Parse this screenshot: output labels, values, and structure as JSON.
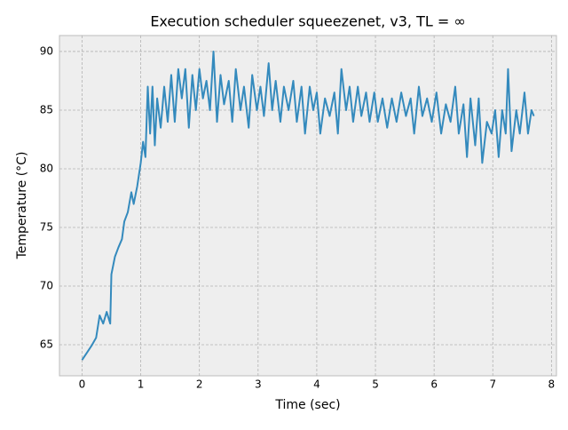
{
  "chart_data": {
    "type": "line",
    "title": "Execution scheduler squeezenet, v3, TL = ∞",
    "x_label": "Time (sec)",
    "y_label": "Temperature (°C)",
    "x": [
      0.0,
      0.08,
      0.16,
      0.24,
      0.3,
      0.36,
      0.42,
      0.48,
      0.5,
      0.56,
      0.62,
      0.68,
      0.72,
      0.78,
      0.84,
      0.88,
      0.94,
      1.0,
      1.04,
      1.08,
      1.12,
      1.16,
      1.2,
      1.24,
      1.28,
      1.34,
      1.4,
      1.46,
      1.52,
      1.58,
      1.64,
      1.7,
      1.76,
      1.82,
      1.88,
      1.94,
      2.0,
      2.06,
      2.12,
      2.18,
      2.24,
      2.3,
      2.36,
      2.42,
      2.5,
      2.56,
      2.62,
      2.7,
      2.76,
      2.84,
      2.9,
      2.98,
      3.04,
      3.1,
      3.18,
      3.24,
      3.3,
      3.38,
      3.44,
      3.52,
      3.6,
      3.66,
      3.74,
      3.8,
      3.88,
      3.94,
      4.0,
      4.06,
      4.14,
      4.22,
      4.3,
      4.36,
      4.42,
      4.5,
      4.56,
      4.62,
      4.7,
      4.76,
      4.84,
      4.9,
      4.98,
      5.04,
      5.12,
      5.2,
      5.28,
      5.36,
      5.44,
      5.52,
      5.6,
      5.66,
      5.74,
      5.8,
      5.88,
      5.96,
      6.04,
      6.12,
      6.2,
      6.28,
      6.36,
      6.42,
      6.5,
      6.56,
      6.62,
      6.7,
      6.76,
      6.82,
      6.9,
      6.98,
      7.04,
      7.1,
      7.16,
      7.22,
      7.26,
      7.32,
      7.4,
      7.46,
      7.54,
      7.6,
      7.66,
      7.7
    ],
    "series": [
      {
        "name": "temperature",
        "color": "#348abd",
        "values": [
          63.7,
          64.3,
          64.9,
          65.6,
          67.5,
          66.8,
          67.8,
          66.8,
          71,
          72.5,
          73.3,
          74,
          75.5,
          76.3,
          78,
          77,
          78.5,
          80.5,
          82.3,
          81,
          87,
          83,
          87,
          82,
          86,
          83.5,
          87,
          84,
          88,
          84,
          88.5,
          86,
          88.5,
          83.5,
          88,
          85,
          88.5,
          86,
          87.5,
          85,
          90,
          84,
          88,
          85.5,
          87.5,
          84,
          88.5,
          85,
          87,
          83.5,
          88,
          85,
          87,
          84.5,
          89,
          85,
          87.5,
          84,
          87,
          85,
          87.5,
          84,
          87,
          83,
          87,
          85,
          86.5,
          83,
          86,
          84.5,
          86.5,
          83,
          88.5,
          85,
          87,
          84,
          87,
          84.5,
          86.5,
          84,
          86.5,
          84,
          86,
          83.5,
          86,
          84,
          86.5,
          84.5,
          86,
          83,
          87,
          84.5,
          86,
          84,
          86.5,
          83,
          85.5,
          84,
          87,
          83,
          85.5,
          81,
          86,
          82,
          86,
          80.5,
          84,
          83,
          85,
          81,
          85,
          83,
          88.5,
          81.5,
          85,
          83,
          86.5,
          83,
          85,
          84.5
        ]
      }
    ],
    "xlim": [
      -0.385,
      8.085
    ],
    "ylim": [
      62.35,
      91.36
    ],
    "xticks": [
      0,
      1,
      2,
      3,
      4,
      5,
      6,
      7,
      8
    ],
    "yticks": [
      65,
      70,
      75,
      80,
      85,
      90
    ],
    "grid": true
  }
}
